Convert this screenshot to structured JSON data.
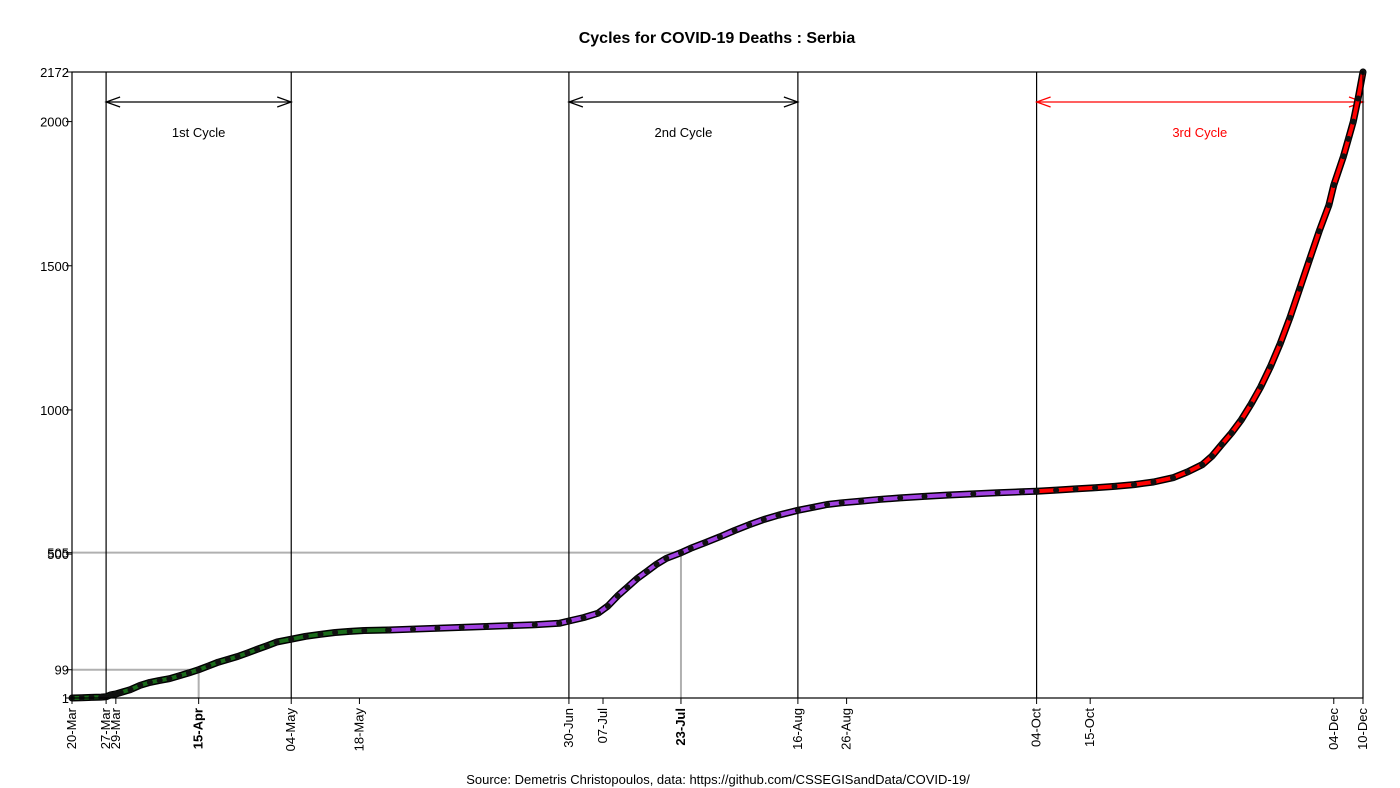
{
  "chart_data": {
    "type": "line",
    "title": "Cycles for COVID-19 Deaths : Serbia",
    "caption": "Source: Demetris Christopoulos, data: https://github.com/CSSEGISandData/COVID-19/",
    "xlabel": "",
    "ylabel": "",
    "x_start_date": "2020-03-20",
    "xlim": [
      0,
      265
    ],
    "ylim": [
      1,
      2172
    ],
    "y_ticks": [
      {
        "value": 1,
        "label": "1"
      },
      {
        "value": 99,
        "label": "99"
      },
      {
        "value": 500,
        "label": "500"
      },
      {
        "value": 505,
        "label": "505"
      },
      {
        "value": 1000,
        "label": "1000"
      },
      {
        "value": 1500,
        "label": "1500"
      },
      {
        "value": 2000,
        "label": "2000"
      },
      {
        "value": 2172,
        "label": "2172"
      }
    ],
    "x_ticks": [
      {
        "day": 0,
        "label": "20-Mar",
        "bold": false
      },
      {
        "day": 7,
        "label": "27-Mar",
        "bold": false
      },
      {
        "day": 9,
        "label": "29-Mar",
        "bold": false
      },
      {
        "day": 26,
        "label": "15-Apr",
        "bold": true
      },
      {
        "day": 45,
        "label": "04-May",
        "bold": false
      },
      {
        "day": 59,
        "label": "18-May",
        "bold": false
      },
      {
        "day": 102,
        "label": "30-Jun",
        "bold": false
      },
      {
        "day": 109,
        "label": "07-Jul",
        "bold": false
      },
      {
        "day": 125,
        "label": "23-Jul",
        "bold": true
      },
      {
        "day": 149,
        "label": "16-Aug",
        "bold": false
      },
      {
        "day": 159,
        "label": "26-Aug",
        "bold": false
      },
      {
        "day": 198,
        "label": "04-Oct",
        "bold": false
      },
      {
        "day": 209,
        "label": "15-Oct",
        "bold": false
      },
      {
        "day": 259,
        "label": "04-Dec",
        "bold": false
      },
      {
        "day": 265,
        "label": "10-Dec",
        "bold": false
      }
    ],
    "vertical_lines": [
      7,
      45,
      102,
      149,
      198
    ],
    "reference_lines": [
      {
        "day": 26,
        "value": 99
      },
      {
        "day": 125,
        "value": 505
      }
    ],
    "cycles": [
      {
        "label": "1st Cycle",
        "start_day": 7,
        "end_day": 45,
        "color": "#000000"
      },
      {
        "label": "2nd Cycle",
        "start_day": 102,
        "end_day": 149,
        "color": "#000000"
      },
      {
        "label": "3rd Cycle",
        "start_day": 198,
        "end_day": 265,
        "color": "#ff0000"
      }
    ],
    "series": [
      {
        "color": "#1a6b1a",
        "points": [
          [
            0,
            1
          ],
          [
            2,
            2
          ],
          [
            4,
            3
          ],
          [
            6,
            4
          ],
          [
            7,
            5
          ],
          [
            8,
            12
          ],
          [
            9,
            15
          ],
          [
            10,
            20
          ],
          [
            12,
            30
          ],
          [
            14,
            45
          ],
          [
            16,
            55
          ],
          [
            18,
            62
          ],
          [
            20,
            68
          ],
          [
            22,
            78
          ],
          [
            24,
            88
          ],
          [
            26,
            99
          ],
          [
            28,
            112
          ],
          [
            30,
            125
          ],
          [
            32,
            135
          ],
          [
            34,
            145
          ],
          [
            36,
            157
          ],
          [
            38,
            170
          ],
          [
            40,
            182
          ],
          [
            42,
            195
          ],
          [
            45,
            205
          ],
          [
            48,
            215
          ],
          [
            51,
            222
          ],
          [
            54,
            228
          ],
          [
            57,
            232
          ],
          [
            60,
            235
          ],
          [
            65,
            237
          ]
        ]
      },
      {
        "color": "#a040e0",
        "points": [
          [
            65,
            237
          ],
          [
            70,
            240
          ],
          [
            75,
            243
          ],
          [
            80,
            246
          ],
          [
            85,
            249
          ],
          [
            90,
            252
          ],
          [
            95,
            255
          ],
          [
            100,
            260
          ],
          [
            102,
            268
          ],
          [
            105,
            280
          ],
          [
            108,
            295
          ],
          [
            110,
            320
          ],
          [
            112,
            355
          ],
          [
            114,
            385
          ],
          [
            116,
            415
          ],
          [
            118,
            440
          ],
          [
            120,
            465
          ],
          [
            122,
            485
          ],
          [
            125,
            505
          ],
          [
            127,
            520
          ],
          [
            130,
            540
          ],
          [
            133,
            560
          ],
          [
            136,
            582
          ],
          [
            139,
            602
          ],
          [
            142,
            620
          ],
          [
            145,
            635
          ],
          [
            149,
            652
          ],
          [
            152,
            662
          ],
          [
            155,
            672
          ],
          [
            158,
            678
          ],
          [
            162,
            684
          ],
          [
            166,
            690
          ],
          [
            170,
            695
          ],
          [
            175,
            700
          ],
          [
            180,
            705
          ],
          [
            185,
            709
          ],
          [
            190,
            713
          ],
          [
            195,
            716
          ],
          [
            198,
            718
          ]
        ]
      },
      {
        "color": "#ff0000",
        "points": [
          [
            198,
            718
          ],
          [
            202,
            722
          ],
          [
            206,
            726
          ],
          [
            210,
            730
          ],
          [
            214,
            735
          ],
          [
            218,
            741
          ],
          [
            222,
            750
          ],
          [
            226,
            765
          ],
          [
            229,
            785
          ],
          [
            232,
            810
          ],
          [
            234,
            840
          ],
          [
            236,
            880
          ],
          [
            238,
            920
          ],
          [
            240,
            965
          ],
          [
            242,
            1020
          ],
          [
            244,
            1080
          ],
          [
            246,
            1150
          ],
          [
            248,
            1230
          ],
          [
            250,
            1320
          ],
          [
            252,
            1420
          ],
          [
            254,
            1520
          ],
          [
            256,
            1620
          ],
          [
            258,
            1710
          ],
          [
            259,
            1780
          ],
          [
            261,
            1880
          ],
          [
            262,
            1940
          ],
          [
            263,
            2000
          ],
          [
            264,
            2080
          ],
          [
            265,
            2172
          ]
        ]
      }
    ]
  }
}
